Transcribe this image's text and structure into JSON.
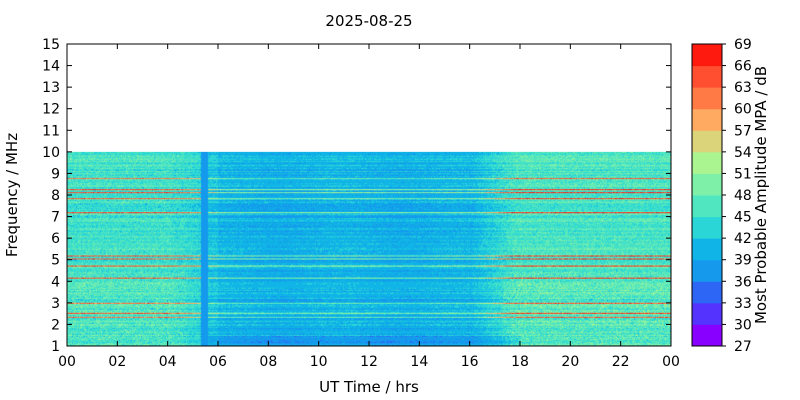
{
  "chart_data": {
    "type": "heatmap",
    "title": "2025-08-25",
    "xlabel": "UT Time / hrs",
    "ylabel": "Frequency / MHz",
    "colorbar_label": "Most Probable Amplitude MPA / dB",
    "x_range": [
      0,
      24
    ],
    "y_range": [
      1,
      15
    ],
    "x_tick_labels": [
      "00",
      "02",
      "04",
      "06",
      "08",
      "10",
      "12",
      "14",
      "16",
      "18",
      "20",
      "22",
      "00"
    ],
    "y_tick_labels": [
      "1",
      "2",
      "3",
      "4",
      "5",
      "6",
      "7",
      "8",
      "9",
      "10",
      "11",
      "12",
      "13",
      "14",
      "15"
    ],
    "data_freq_max": 10,
    "colorbar": {
      "levels": [
        27,
        30,
        33,
        36,
        39,
        42,
        45,
        48,
        51,
        54,
        57,
        60,
        63,
        66,
        69
      ],
      "tick_labels": [
        "27",
        "30",
        "33",
        "36",
        "39",
        "42",
        "45",
        "48",
        "51",
        "54",
        "57",
        "60",
        "63",
        "66",
        "69"
      ],
      "colors": [
        "#8800ff",
        "#5533ff",
        "#2d66f5",
        "#1499ed",
        "#10b4e6",
        "#2ad6d6",
        "#50e6c0",
        "#7ff0a8",
        "#aaf590",
        "#dcd47a",
        "#ffaa60",
        "#ff7a45",
        "#ff4e30",
        "#ff1a10"
      ]
    },
    "approximate_intensity_dB": {
      "background": "36-42",
      "quiet_period_06_to_16_UT": "36-39",
      "active_periods_00_to_05_and_18_to_24_UT": "42-51",
      "strong_horizontal_lines": "57-69"
    }
  }
}
